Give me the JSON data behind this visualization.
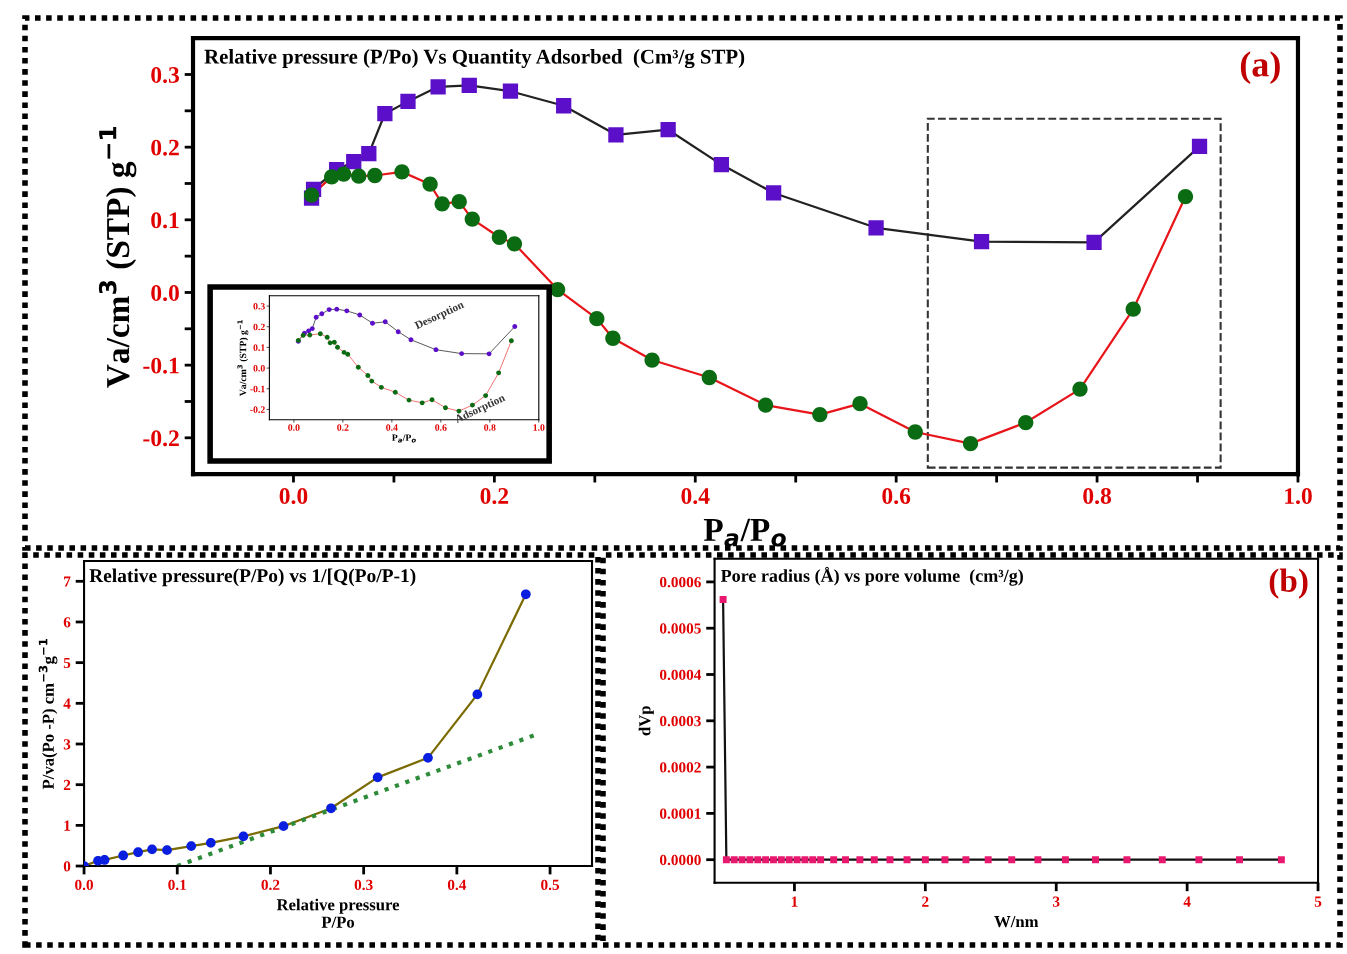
{
  "chart_data": [
    {
      "type": "line",
      "title": "Relative pressure (P/Po) Vs Quantity Adsorbed  (Cm³/g STP)",
      "xlabel": "P$_{a}$/P$_{o}$",
      "ylabel": "Va/cm$^{3}$ (STP) g$^{−1}$",
      "annotations": [
        "(a)"
      ],
      "xlim": [
        -0.1,
        1.0
      ],
      "ylim": [
        -0.25,
        0.35
      ],
      "xticks": [
        {
          "value": 0.0,
          "label": "0.0"
        },
        {
          "value": 0.1,
          "label": null
        },
        {
          "value": 0.2,
          "label": "0.2"
        },
        {
          "value": 0.3,
          "label": null
        },
        {
          "value": 0.4,
          "label": "0.4"
        },
        {
          "value": 0.5,
          "label": null
        },
        {
          "value": 0.6,
          "label": "0.6"
        },
        {
          "value": 0.7,
          "label": null
        },
        {
          "value": 0.8,
          "label": "0.8"
        },
        {
          "value": 0.9,
          "label": null
        },
        {
          "value": 1.0,
          "label": "1.0"
        }
      ],
      "yticks": [
        {
          "value": -0.2,
          "label": "-0.2"
        },
        {
          "value": -0.15,
          "label": null
        },
        {
          "value": -0.1,
          "label": "-0.1"
        },
        {
          "value": -0.05,
          "label": null
        },
        {
          "value": 0.0,
          "label": "0.0"
        },
        {
          "value": 0.05,
          "label": null
        },
        {
          "value": 0.1,
          "label": "0.1"
        },
        {
          "value": 0.15,
          "label": null
        },
        {
          "value": 0.2,
          "label": "0.2"
        },
        {
          "value": 0.25,
          "label": null
        },
        {
          "value": 0.3,
          "label": "0.3"
        }
      ],
      "series": [
        {
          "color": "#222222",
          "marker": "square",
          "x": [
            0.018,
            0.02,
            0.043,
            0.06,
            0.075,
            0.091,
            0.114,
            0.144,
            0.175,
            0.216,
            0.269,
            0.321,
            0.373,
            0.426,
            0.478,
            0.58,
            0.685,
            0.797,
            0.902
          ],
          "values": [
            0.13,
            0.142,
            0.169,
            0.18,
            0.191,
            0.246,
            0.263,
            0.283,
            0.285,
            0.277,
            0.257,
            0.217,
            0.224,
            0.176,
            0.137,
            0.089,
            0.07,
            0.069,
            0.201
          ],
          "colors": [
            "#5b0fc8",
            "#5b0fc8",
            "#5b0fc8",
            "#5b0fc8",
            "#5b0fc8",
            "#5b0fc8",
            "#5b0fc8",
            "#5b0fc8",
            "#5b0fc8",
            "#5b0fc8",
            "#5b0fc8",
            "#5b0fc8",
            "#5b0fc8",
            "#5b0fc8",
            "#5b0fc8",
            "#5b0fc8",
            "#5b0fc8",
            "#5b0fc8",
            "#5b0fc8"
          ]
        },
        {
          "color": "#e8161b",
          "marker": "circle",
          "x": [
            0.018,
            0.038,
            0.05,
            0.065,
            0.081,
            0.108,
            0.136,
            0.148,
            0.165,
            0.178,
            0.205,
            0.22,
            0.263,
            0.302,
            0.318,
            0.357,
            0.414,
            0.47,
            0.524,
            0.564,
            0.619,
            0.674,
            0.729,
            0.783,
            0.836,
            0.888
          ],
          "values": [
            0.134,
            0.159,
            0.163,
            0.16,
            0.161,
            0.166,
            0.149,
            0.122,
            0.125,
            0.101,
            0.076,
            0.067,
            0.004,
            -0.036,
            -0.063,
            -0.093,
            -0.117,
            -0.155,
            -0.168,
            -0.153,
            -0.192,
            -0.208,
            -0.179,
            -0.133,
            -0.023,
            0.132
          ],
          "colors": [
            "#0b6b12",
            "#0b6b12",
            "#0b6b12",
            "#0b6b12",
            "#0b6b12",
            "#0b6b12",
            "#0b6b12",
            "#0b6b12",
            "#0b6b12",
            "#0b6b12",
            "#0b6b12",
            "#0b6b12",
            "#0b6b12",
            "#0b6b12",
            "#0b6b12",
            "#0b6b12",
            "#0b6b12",
            "#0b6b12",
            "#0b6b12",
            "#0b6b12",
            "#0b6b12",
            "#0b6b12",
            "#0b6b12",
            "#0b6b12",
            "#0b6b12",
            "#0b6b12"
          ]
        }
      ]
    },
    {
      "type": "line",
      "xlabel": "P$_{a}$/P$_{o}$",
      "ylabel": "Va/cm$^{3}$ (STP) g$^{−1}$",
      "xlim": [
        -0.1,
        1.0
      ],
      "ylim": [
        -0.25,
        0.35
      ],
      "xticks": [
        {
          "value": 0.0,
          "label": "0.0"
        },
        {
          "value": 0.2,
          "label": "0.2"
        },
        {
          "value": 0.4,
          "label": "0.4"
        },
        {
          "value": 0.6,
          "label": "0.6"
        },
        {
          "value": 0.8,
          "label": "0.8"
        },
        {
          "value": 1.0,
          "label": "1.0"
        }
      ],
      "yticks": [
        {
          "value": -0.2,
          "label": "-0.2"
        },
        {
          "value": -0.1,
          "label": "-0.1"
        },
        {
          "value": 0.0,
          "label": "0.0"
        },
        {
          "value": 0.1,
          "label": "0.1"
        },
        {
          "value": 0.2,
          "label": "0.2"
        },
        {
          "value": 0.3,
          "label": "0.3"
        }
      ],
      "series": [
        {
          "name": "Desorption",
          "color": "#555555",
          "marker": "circle",
          "x": [
            0.018,
            0.043,
            0.06,
            0.075,
            0.091,
            0.114,
            0.144,
            0.175,
            0.216,
            0.269,
            0.321,
            0.373,
            0.426,
            0.478,
            0.58,
            0.685,
            0.797,
            0.902
          ],
          "values": [
            0.13,
            0.169,
            0.18,
            0.191,
            0.246,
            0.263,
            0.283,
            0.285,
            0.277,
            0.257,
            0.217,
            0.224,
            0.176,
            0.137,
            0.089,
            0.07,
            0.069,
            0.201
          ],
          "colors": [
            "#5b0fc8",
            "#5b0fc8",
            "#5b0fc8",
            "#5b0fc8",
            "#5b0fc8",
            "#5b0fc8",
            "#5b0fc8",
            "#5b0fc8",
            "#5b0fc8",
            "#5b0fc8",
            "#5b0fc8",
            "#5b0fc8",
            "#5b0fc8",
            "#5b0fc8",
            "#5b0fc8",
            "#5b0fc8",
            "#5b0fc8",
            "#5b0fc8"
          ]
        },
        {
          "name": "Adsorption",
          "color": "#f07070",
          "marker": "circle",
          "x": [
            0.018,
            0.038,
            0.065,
            0.108,
            0.136,
            0.148,
            0.165,
            0.178,
            0.205,
            0.22,
            0.263,
            0.302,
            0.318,
            0.357,
            0.414,
            0.47,
            0.524,
            0.564,
            0.619,
            0.674,
            0.729,
            0.783,
            0.836,
            0.888
          ],
          "values": [
            0.134,
            0.159,
            0.16,
            0.166,
            0.149,
            0.122,
            0.125,
            0.101,
            0.076,
            0.067,
            0.004,
            -0.036,
            -0.063,
            -0.093,
            -0.117,
            -0.155,
            -0.168,
            -0.153,
            -0.192,
            -0.208,
            -0.179,
            -0.133,
            -0.023,
            0.132
          ],
          "colors": [
            "#0b6b12",
            "#0b6b12",
            "#0b6b12",
            "#0b6b12",
            "#0b6b12",
            "#0b6b12",
            "#0b6b12",
            "#0b6b12",
            "#0b6b12",
            "#0b6b12",
            "#0b6b12",
            "#0b6b12",
            "#0b6b12",
            "#0b6b12",
            "#0b6b12",
            "#0b6b12",
            "#0b6b12",
            "#0b6b12",
            "#0b6b12",
            "#0b6b12",
            "#0b6b12",
            "#0b6b12",
            "#0b6b12",
            "#0b6b12"
          ]
        }
      ]
    },
    {
      "type": "line",
      "title": "Relative pressure(P/Po) vs 1/[Q(Po/P-1)",
      "xlabel": "Relative pressure\nP/Po",
      "ylabel": "P/va(Po -P) cm$^{−3}$g$^{−1}$",
      "xlim": [
        0.0,
        0.545
      ],
      "ylim": [
        0,
        7.5
      ],
      "xticks": [
        {
          "value": 0.0,
          "label": "0.0"
        },
        {
          "value": 0.1,
          "label": "0.1"
        },
        {
          "value": 0.2,
          "label": "0.2"
        },
        {
          "value": 0.3,
          "label": "0.3"
        },
        {
          "value": 0.4,
          "label": "0.4"
        },
        {
          "value": 0.5,
          "label": "0.5"
        }
      ],
      "yticks": [
        0,
        1,
        2,
        3,
        4,
        5,
        6,
        7
      ],
      "series": [
        {
          "color": "#7a6a00",
          "marker": "circle",
          "x": [
            0.0,
            0.015,
            0.022,
            0.042,
            0.058,
            0.073,
            0.089,
            0.115,
            0.136,
            0.171,
            0.214,
            0.265,
            0.315,
            0.369,
            0.422,
            0.474
          ],
          "values": [
            0.0,
            0.13,
            0.15,
            0.26,
            0.34,
            0.41,
            0.39,
            0.49,
            0.57,
            0.73,
            0.98,
            1.42,
            2.18,
            2.66,
            4.22,
            6.68
          ],
          "colors": [
            "#0a1ee0",
            "#0a1ee0",
            "#0a1ee0",
            "#0a1ee0",
            "#0a1ee0",
            "#0a1ee0",
            "#0a1ee0",
            "#0a1ee0",
            "#0a1ee0",
            "#0a1ee0",
            "#0a1ee0",
            "#0a1ee0",
            "#0a1ee0",
            "#0a1ee0",
            "#0a1ee0",
            "#0a1ee0"
          ]
        },
        {
          "color": "#2e8b3a",
          "marker": "none",
          "line_style": "dotted",
          "x": [
            0.1,
            0.486
          ],
          "values": [
            0.0,
            3.24
          ]
        }
      ]
    },
    {
      "type": "line",
      "title": "Pore radius (Å) vs pore volume  (cm³/g)",
      "xlabel": "W/nm",
      "ylabel": "dVp",
      "annotations": [
        "(b)"
      ],
      "xlim": [
        0.39,
        5.0
      ],
      "ylim": [
        -5e-05,
        0.00065
      ],
      "xticks": [
        1,
        2,
        3,
        4,
        5
      ],
      "yticks": [
        {
          "value": 0.0,
          "label": "0.0000"
        },
        {
          "value": 0.0001,
          "label": "0.0001"
        },
        {
          "value": 0.0002,
          "label": "0.0002"
        },
        {
          "value": 0.0003,
          "label": "0.0003"
        },
        {
          "value": 0.0004,
          "label": "0.0004"
        },
        {
          "value": 0.0005,
          "label": "0.0005"
        },
        {
          "value": 0.0006,
          "label": "0.0006"
        }
      ],
      "series": [
        {
          "color": "#111111",
          "marker": "square",
          "x": [
            0.455,
            0.48,
            0.54,
            0.6,
            0.66,
            0.72,
            0.78,
            0.84,
            0.9,
            0.96,
            1.02,
            1.08,
            1.14,
            1.2,
            1.3,
            1.39,
            1.5,
            1.61,
            1.73,
            1.86,
            2.0,
            2.15,
            2.31,
            2.48,
            2.66,
            2.86,
            3.07,
            3.3,
            3.54,
            3.81,
            4.09,
            4.4,
            4.72
          ],
          "values": [
            0.000562,
            0.0,
            0.0,
            0.0,
            0.0,
            0.0,
            0.0,
            0.0,
            0.0,
            0.0,
            0.0,
            0.0,
            0.0,
            0.0,
            0.0,
            0.0,
            0.0,
            0.0,
            0.0,
            0.0,
            0.0,
            0.0,
            0.0,
            0.0,
            0.0,
            0.0,
            0.0,
            0.0,
            0.0,
            0.0,
            0.0,
            0.0,
            0.0
          ],
          "colors": [
            "#e8186e",
            "#e8186e",
            "#e8186e",
            "#e8186e",
            "#e8186e",
            "#e8186e",
            "#e8186e",
            "#e8186e",
            "#e8186e",
            "#e8186e",
            "#e8186e",
            "#e8186e",
            "#e8186e",
            "#e8186e",
            "#e8186e",
            "#e8186e",
            "#e8186e",
            "#e8186e",
            "#e8186e",
            "#e8186e",
            "#e8186e",
            "#e8186e",
            "#e8186e",
            "#e8186e",
            "#e8186e",
            "#e8186e",
            "#e8186e",
            "#e8186e",
            "#e8186e",
            "#e8186e",
            "#e8186e",
            "#e8186e",
            "#e8186e"
          ]
        }
      ]
    }
  ]
}
